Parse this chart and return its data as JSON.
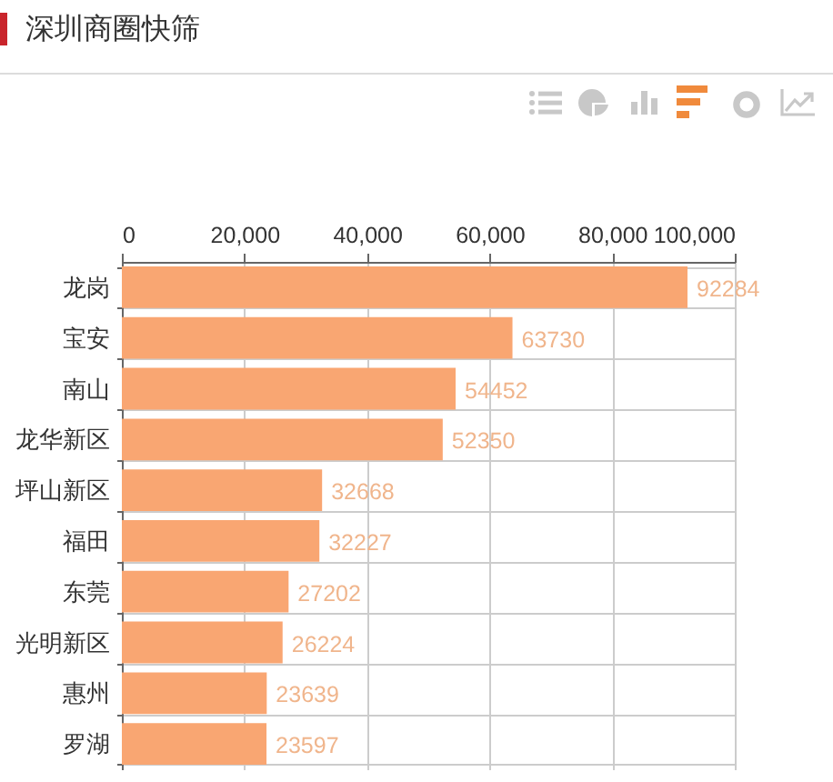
{
  "chart_data": {
    "type": "bar",
    "title": "深圳商圈快筛",
    "orientation": "horizontal",
    "categories": [
      "龙岗",
      "宝安",
      "南山",
      "龙华新区",
      "坪山新区",
      "福田",
      "东莞",
      "光明新区",
      "惠州",
      "罗湖"
    ],
    "values": [
      92284,
      63730,
      54452,
      52350,
      32668,
      32227,
      27202,
      26224,
      23639,
      23597
    ],
    "color": "#f9a672",
    "xlim": [
      0,
      100000
    ],
    "xticks": [
      0,
      {
        "value": 20000,
        "label": "20,000"
      },
      {
        "value": 40000,
        "label": "40,000"
      },
      {
        "value": 60000,
        "label": "60,000"
      },
      {
        "value": 80000,
        "label": "80,000"
      },
      {
        "value": 100000,
        "label": "100,000"
      }
    ],
    "grid": true,
    "data_labels": true
  }
}
